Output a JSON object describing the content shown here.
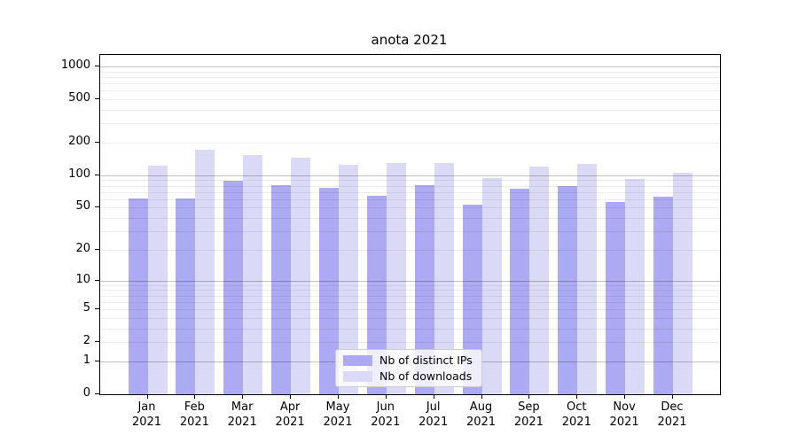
{
  "title": "anota 2021",
  "chart_data": {
    "type": "bar",
    "title": "anota 2021",
    "categories": [
      "Jan 2021",
      "Feb 2021",
      "Mar 2021",
      "Apr 2021",
      "May 2021",
      "Jun 2021",
      "Jul 2021",
      "Aug 2021",
      "Sep 2021",
      "Oct 2021",
      "Nov 2021",
      "Dec 2021"
    ],
    "series": [
      {
        "name": "Nb of distinct IPs",
        "color": "#abaaf2",
        "values": [
          61,
          61,
          89,
          81,
          77,
          65,
          81,
          53,
          75,
          80,
          57,
          63
        ]
      },
      {
        "name": "Nb of downloads",
        "color": "#dadaf6",
        "values": [
          123,
          172,
          154,
          145,
          125,
          130,
          130,
          94,
          120,
          128,
          93,
          105
        ]
      }
    ],
    "xlabel": "",
    "ylabel": "",
    "yscale": "log1p",
    "y_ticks": [
      0,
      1,
      2,
      5,
      10,
      20,
      50,
      100,
      200,
      500,
      1000
    ],
    "ylim": [
      0,
      1300
    ],
    "grid": "horizontal, major and minor",
    "legend_position": "lower center-right inside plot"
  }
}
